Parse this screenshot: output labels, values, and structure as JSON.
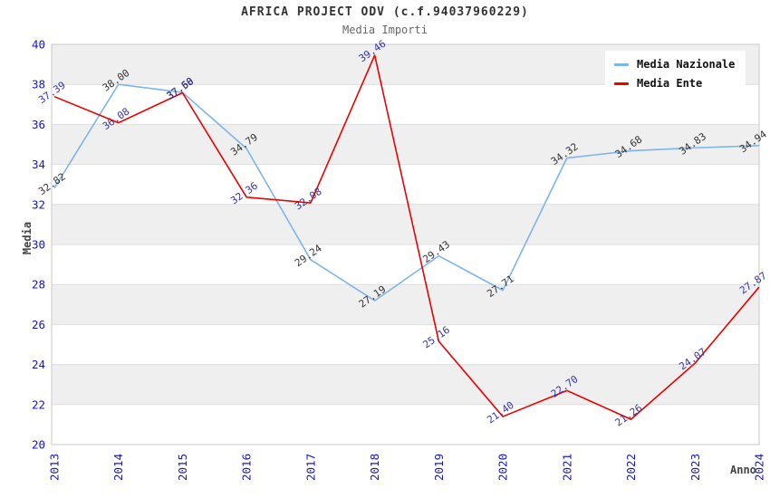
{
  "title": "AFRICA PROJECT ODV (c.f.94037960229)",
  "subtitle": "Media Importi",
  "y_axis_title": "Media",
  "x_axis_title": "Anno",
  "legend": [
    {
      "label": "Media Nazionale",
      "color": "#7cb5ec"
    },
    {
      "label": "Media Ente",
      "color": "#ee0000"
    }
  ],
  "colors": {
    "axis_tick_text": "#1515cc",
    "grid_band_fill": "#efefef",
    "grid_line": "#dedede",
    "plot_border": "#c8c8c8",
    "title_text": "#333333",
    "subtitle_text": "#666666"
  },
  "chart_data": {
    "type": "line",
    "x": [
      "2013",
      "2014",
      "2015",
      "2016",
      "2017",
      "2018",
      "2019",
      "2020",
      "2021",
      "2022",
      "2023",
      "2024"
    ],
    "series": [
      {
        "name": "Media Nazionale",
        "color": "#7cb5ec",
        "label_color": "#333333",
        "values": [
          32.82,
          38.0,
          37.6,
          34.79,
          29.24,
          27.19,
          29.43,
          27.71,
          34.32,
          34.68,
          34.83,
          34.94
        ]
      },
      {
        "name": "Media Ente",
        "color": "#ee0000",
        "label_color": "#3333aa",
        "values": [
          37.39,
          36.08,
          37.58,
          32.36,
          32.08,
          39.46,
          25.16,
          21.4,
          22.7,
          21.26,
          24.07,
          27.87
        ]
      }
    ],
    "title": "AFRICA PROJECT ODV (c.f.94037960229)",
    "subtitle": "Media Importi",
    "xlabel": "Anno",
    "ylabel": "Media",
    "ylim": [
      20,
      40
    ],
    "ytick_step": 2,
    "grid": "alternating-horizontal-bands",
    "legend_position": "top-right",
    "point_labels": "shown, rotated"
  }
}
